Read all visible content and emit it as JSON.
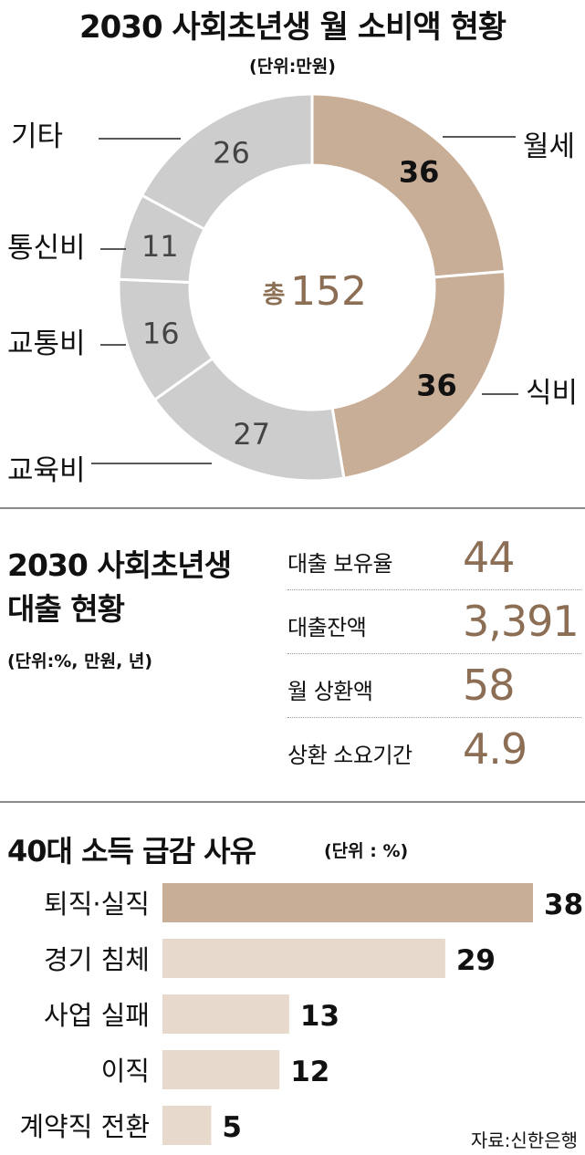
{
  "header": {
    "title": "2030 사회초년생 월 소비액 현황",
    "unit": "(단위:만원)"
  },
  "chart_data": [
    {
      "type": "pie",
      "title": "2030 사회초년생 월 소비액 현황",
      "unit": "(단위:만원)",
      "center_label": "총",
      "total": "152",
      "slices": [
        {
          "label": "월세",
          "value": 36,
          "color": "#c8ad97"
        },
        {
          "label": "식비",
          "value": 36,
          "color": "#c8ad97"
        },
        {
          "label": "교육비",
          "value": 27,
          "color": "#cdcdcd"
        },
        {
          "label": "교통비",
          "value": 16,
          "color": "#cdcdcd"
        },
        {
          "label": "통신비",
          "value": 11,
          "color": "#cdcdcd"
        },
        {
          "label": "기타",
          "value": 26,
          "color": "#cdcdcd"
        }
      ]
    },
    {
      "type": "bar",
      "orientation": "horizontal",
      "title": "40대 소득 급감 사유",
      "unit": "(단위 : %)",
      "categories": [
        "퇴직·실직",
        "경기 침체",
        "사업 실패",
        "이직",
        "계약직 전환"
      ],
      "values": [
        38,
        29,
        13,
        12,
        5
      ],
      "colors": [
        "#c8ad97",
        "#e8d9cd",
        "#e8d9cd",
        "#e8d9cd",
        "#e8d9cd"
      ],
      "xlim": [
        0,
        38
      ]
    }
  ],
  "loans": {
    "title_line1": "2030 사회초년생",
    "title_line2": "대출 현황",
    "unit": "(단위:%, 만원, 년)",
    "rows": [
      {
        "label": "대출 보유율",
        "value": "44"
      },
      {
        "label": "대출잔액",
        "value": "3,391"
      },
      {
        "label": "월 상환액",
        "value": "58"
      },
      {
        "label": "상환 소요기간",
        "value": "4.9"
      }
    ]
  },
  "income": {
    "title": "40대 소득 급감 사유",
    "unit": "(단위 : %)"
  },
  "source": "자료:신한은행",
  "colors": {
    "accent": "#c8ad97",
    "accent_light": "#e8d9cd",
    "gray": "#cdcdcd",
    "value_text": "#8c6e55",
    "center_text": "#8c6e55"
  }
}
